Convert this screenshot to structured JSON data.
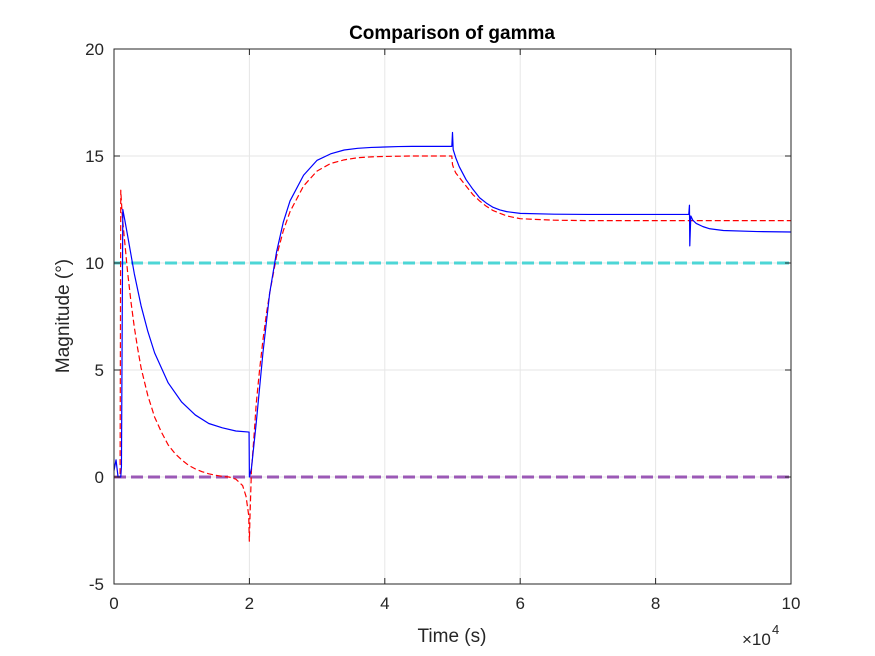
{
  "chart_data": {
    "type": "line",
    "title": "Comparison of gamma",
    "xlabel": "Time (s)",
    "ylabel": "Magnitude (°)",
    "x_exponent_label": "×10",
    "x_exponent_power": "4",
    "xlim": [
      0,
      100000
    ],
    "ylim": [
      -5,
      20
    ],
    "xticks": [
      0,
      20000,
      40000,
      60000,
      80000,
      100000
    ],
    "xtick_labels": [
      "0",
      "2",
      "4",
      "6",
      "8",
      "10"
    ],
    "yticks": [
      -5,
      0,
      5,
      10,
      15,
      20
    ],
    "ytick_labels": [
      "-5",
      "0",
      "5",
      "10",
      "15",
      "20"
    ],
    "grid": true,
    "series": [
      {
        "color": "#0000ff",
        "dash": "solid",
        "x": [
          0,
          300,
          600,
          700,
          1000,
          1100,
          1300,
          1600,
          2000,
          2500,
          3000,
          4000,
          5000,
          6000,
          8000,
          10000,
          12000,
          14000,
          16000,
          18000,
          19950,
          20000,
          20300,
          21000,
          22000,
          23000,
          24000,
          25000,
          26000,
          28000,
          30000,
          32000,
          34000,
          36000,
          38000,
          40000,
          42000,
          44000,
          46000,
          48000,
          49900,
          50000,
          50100,
          50500,
          51000,
          52000,
          53000,
          54000,
          55000,
          56000,
          57000,
          58000,
          60000,
          65000,
          70000,
          75000,
          80000,
          84900,
          85000,
          85050,
          85200,
          85500,
          86000,
          87000,
          88000,
          90000,
          95000,
          100000
        ],
        "y": [
          0.3,
          0.8,
          0.0,
          0.0,
          0.0,
          0.5,
          12.5,
          12.0,
          11.3,
          10.4,
          9.5,
          8.0,
          6.8,
          5.8,
          4.4,
          3.5,
          2.9,
          2.5,
          2.3,
          2.15,
          2.1,
          0.0,
          0.4,
          2.5,
          5.8,
          8.6,
          10.5,
          11.9,
          12.9,
          14.1,
          14.8,
          15.1,
          15.28,
          15.36,
          15.4,
          15.42,
          15.44,
          15.45,
          15.45,
          15.45,
          15.45,
          16.1,
          15.3,
          14.9,
          14.5,
          13.9,
          13.45,
          13.05,
          12.8,
          12.6,
          12.48,
          12.4,
          12.32,
          12.28,
          12.27,
          12.27,
          12.27,
          12.27,
          12.7,
          10.8,
          12.2,
          12.0,
          11.85,
          11.7,
          11.6,
          11.52,
          11.47,
          11.45
        ]
      },
      {
        "color": "#ff0000",
        "dash": "dashed",
        "x": [
          0,
          300,
          700,
          900,
          1000,
          1200,
          1400,
          1700,
          2000,
          2500,
          3000,
          3500,
          4000,
          5000,
          6000,
          7000,
          8000,
          9000,
          10000,
          11000,
          12000,
          13000,
          14000,
          15000,
          16000,
          17000,
          18000,
          19000,
          19500,
          19900,
          19990,
          20100,
          20300,
          20700,
          21000,
          21500,
          22000,
          22500,
          23000,
          24000,
          25000,
          26000,
          28000,
          30000,
          32000,
          34000,
          36000,
          38000,
          40000,
          44000,
          48000,
          49900,
          50000,
          50200,
          50500,
          51000,
          52000,
          53000,
          54000,
          55000,
          56000,
          58000,
          60000,
          65000,
          70000,
          75000,
          80000,
          85000,
          85100,
          86000,
          90000,
          100000
        ],
        "y": [
          0.0,
          0.0,
          0.0,
          0.0,
          13.4,
          12.3,
          11.6,
          10.6,
          9.6,
          8.2,
          7.0,
          6.0,
          5.1,
          3.8,
          2.8,
          2.1,
          1.5,
          1.1,
          0.8,
          0.55,
          0.38,
          0.25,
          0.15,
          0.08,
          0.03,
          0.0,
          -0.1,
          -0.4,
          -0.9,
          -1.8,
          -3.0,
          -1.7,
          0.3,
          2.0,
          3.4,
          5.0,
          6.4,
          7.6,
          8.6,
          10.3,
          11.5,
          12.4,
          13.6,
          14.3,
          14.65,
          14.82,
          14.92,
          14.96,
          14.98,
          15.0,
          15.0,
          15.0,
          14.6,
          14.4,
          14.2,
          14.0,
          13.6,
          13.2,
          12.9,
          12.65,
          12.45,
          12.2,
          12.07,
          12.0,
          11.98,
          11.98,
          11.98,
          11.98,
          11.98,
          11.98,
          11.98,
          11.98
        ]
      },
      {
        "color": "#4dd6d6",
        "dash": "thick-dashed",
        "x": [
          0,
          100000
        ],
        "y": [
          10,
          10
        ]
      },
      {
        "color": "#9b59b6",
        "dash": "thick-dashed",
        "x": [
          0,
          100000
        ],
        "y": [
          0,
          0
        ]
      }
    ]
  }
}
